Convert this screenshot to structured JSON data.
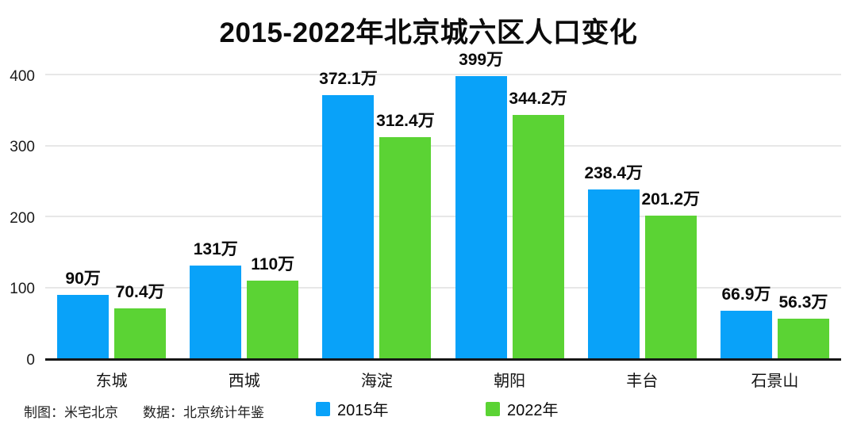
{
  "title": "2015-2022年北京城六区人口变化",
  "chart_data": {
    "type": "bar",
    "categories": [
      "东城",
      "西城",
      "海淀",
      "朝阳",
      "丰台",
      "石景山"
    ],
    "series": [
      {
        "name": "2015年",
        "color": "#09a2f9",
        "values": [
          90,
          131,
          372.1,
          399,
          238.4,
          66.9
        ],
        "labels": [
          "90万",
          "131万",
          "372.1万",
          "399万",
          "238.4万",
          "66.9万"
        ]
      },
      {
        "name": "2022年",
        "color": "#5bd334",
        "values": [
          70.4,
          110,
          312.4,
          344.2,
          201.2,
          56.3
        ],
        "labels": [
          "70.4万",
          "110万",
          "312.4万",
          "344.2万",
          "201.2万",
          "56.3万"
        ]
      }
    ],
    "unit": "万",
    "ylim": [
      0,
      400
    ],
    "yticks": [
      0,
      100,
      200,
      300,
      400
    ],
    "grid": true,
    "legend_position": "bottom"
  },
  "footer": {
    "credit_chart": "制图：米宅北京",
    "credit_data": "数据：北京统计年鉴"
  },
  "colors": {
    "bar_2015": "#09a2f9",
    "bar_2022": "#5bd334",
    "gridline": "#e7e7e7",
    "axis": "#171717",
    "background": "#ffffff"
  }
}
